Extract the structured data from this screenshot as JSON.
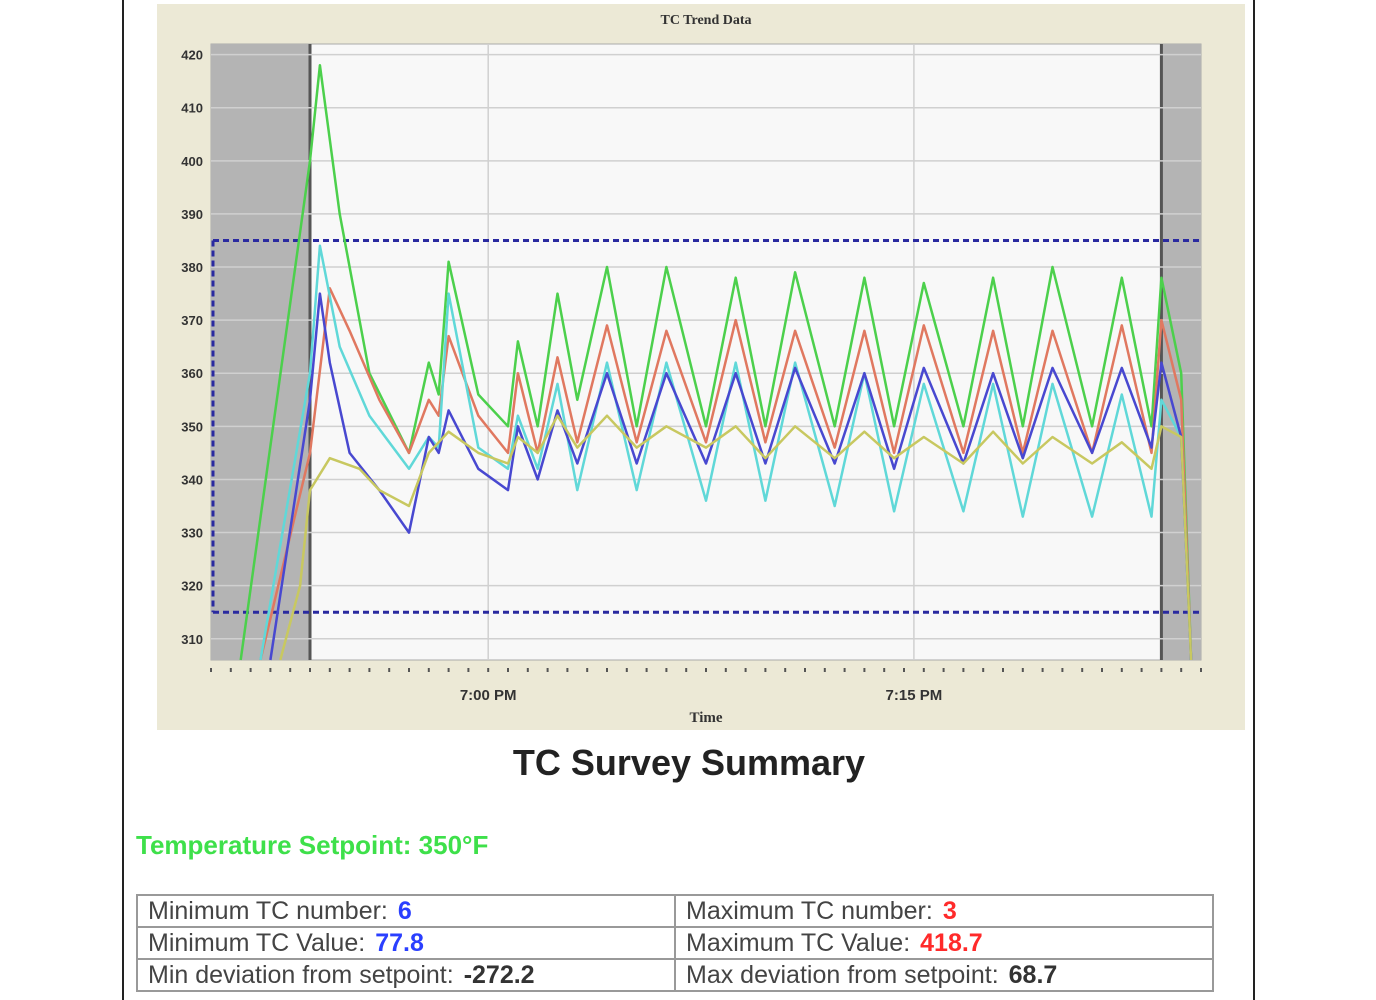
{
  "chart_data": {
    "type": "line",
    "title": "TC Trend Data",
    "xlabel": "Time",
    "ylabel": "",
    "ylim": [
      306,
      422
    ],
    "yticks": [
      310,
      320,
      330,
      340,
      350,
      360,
      370,
      380,
      390,
      400,
      410,
      420
    ],
    "ytick_labels": [
      "310",
      "320",
      "330",
      "340",
      "350",
      "360",
      "370",
      "380",
      "390",
      "400",
      "410",
      "420"
    ],
    "xlim": [
      0,
      100
    ],
    "xticks": [
      {
        "x": 28,
        "label": "7:00 PM"
      },
      {
        "x": 71,
        "label": "7:15 PM"
      }
    ],
    "grid": true,
    "shaded_regions": [
      [
        0,
        10
      ],
      [
        96,
        100
      ]
    ],
    "limit_lines": [
      385,
      315
    ],
    "series": [
      {
        "color": "#4cd04c",
        "points": [
          [
            3,
            306
          ],
          [
            10,
            400
          ],
          [
            11,
            418
          ],
          [
            13,
            390
          ],
          [
            16,
            360
          ],
          [
            20,
            345
          ],
          [
            22,
            362
          ],
          [
            23,
            356
          ],
          [
            24,
            381
          ],
          [
            27,
            356
          ],
          [
            30,
            350
          ],
          [
            31,
            366
          ],
          [
            33,
            350
          ],
          [
            35,
            375
          ],
          [
            37,
            355
          ],
          [
            40,
            380
          ],
          [
            43,
            350
          ],
          [
            46,
            380
          ],
          [
            50,
            350
          ],
          [
            53,
            378
          ],
          [
            56,
            350
          ],
          [
            59,
            379
          ],
          [
            63,
            350
          ],
          [
            66,
            378
          ],
          [
            69,
            350
          ],
          [
            72,
            377
          ],
          [
            76,
            350
          ],
          [
            79,
            378
          ],
          [
            82,
            350
          ],
          [
            85,
            380
          ],
          [
            89,
            350
          ],
          [
            92,
            378
          ],
          [
            95,
            350
          ],
          [
            96,
            378
          ],
          [
            98,
            360
          ],
          [
            99,
            306
          ]
        ]
      },
      {
        "color": "#e07860",
        "points": [
          [
            5,
            306
          ],
          [
            10,
            345
          ],
          [
            12,
            376
          ],
          [
            14,
            368
          ],
          [
            17,
            355
          ],
          [
            20,
            345
          ],
          [
            22,
            355
          ],
          [
            23,
            352
          ],
          [
            24,
            367
          ],
          [
            27,
            352
          ],
          [
            30,
            345
          ],
          [
            31,
            360
          ],
          [
            33,
            345
          ],
          [
            35,
            363
          ],
          [
            37,
            347
          ],
          [
            40,
            369
          ],
          [
            43,
            347
          ],
          [
            46,
            368
          ],
          [
            50,
            347
          ],
          [
            53,
            370
          ],
          [
            56,
            347
          ],
          [
            59,
            368
          ],
          [
            63,
            346
          ],
          [
            66,
            368
          ],
          [
            69,
            345
          ],
          [
            72,
            369
          ],
          [
            76,
            345
          ],
          [
            79,
            368
          ],
          [
            82,
            345
          ],
          [
            85,
            368
          ],
          [
            89,
            345
          ],
          [
            92,
            369
          ],
          [
            95,
            345
          ],
          [
            96,
            370
          ],
          [
            98,
            355
          ],
          [
            99,
            306
          ]
        ]
      },
      {
        "color": "#60d8d8",
        "points": [
          [
            5,
            306
          ],
          [
            10,
            360
          ],
          [
            11,
            384
          ],
          [
            13,
            365
          ],
          [
            16,
            352
          ],
          [
            20,
            342
          ],
          [
            22,
            348
          ],
          [
            23,
            346
          ],
          [
            24,
            375
          ],
          [
            27,
            346
          ],
          [
            30,
            342
          ],
          [
            31,
            352
          ],
          [
            33,
            342
          ],
          [
            35,
            358
          ],
          [
            37,
            338
          ],
          [
            40,
            362
          ],
          [
            43,
            338
          ],
          [
            46,
            362
          ],
          [
            50,
            336
          ],
          [
            53,
            362
          ],
          [
            56,
            336
          ],
          [
            59,
            362
          ],
          [
            63,
            335
          ],
          [
            66,
            360
          ],
          [
            69,
            334
          ],
          [
            72,
            358
          ],
          [
            76,
            334
          ],
          [
            79,
            358
          ],
          [
            82,
            333
          ],
          [
            85,
            358
          ],
          [
            89,
            333
          ],
          [
            92,
            356
          ],
          [
            95,
            333
          ],
          [
            96,
            355
          ],
          [
            98,
            348
          ],
          [
            99,
            306
          ]
        ]
      },
      {
        "color": "#4848d0",
        "points": [
          [
            6,
            306
          ],
          [
            10,
            355
          ],
          [
            11,
            375
          ],
          [
            12,
            362
          ],
          [
            14,
            345
          ],
          [
            17,
            338
          ],
          [
            20,
            330
          ],
          [
            22,
            348
          ],
          [
            23,
            345
          ],
          [
            24,
            353
          ],
          [
            27,
            342
          ],
          [
            30,
            338
          ],
          [
            31,
            350
          ],
          [
            33,
            340
          ],
          [
            35,
            353
          ],
          [
            37,
            343
          ],
          [
            40,
            360
          ],
          [
            43,
            343
          ],
          [
            46,
            360
          ],
          [
            50,
            343
          ],
          [
            53,
            360
          ],
          [
            56,
            343
          ],
          [
            59,
            361
          ],
          [
            63,
            343
          ],
          [
            66,
            360
          ],
          [
            69,
            342
          ],
          [
            72,
            361
          ],
          [
            76,
            343
          ],
          [
            79,
            360
          ],
          [
            82,
            344
          ],
          [
            85,
            361
          ],
          [
            89,
            345
          ],
          [
            92,
            361
          ],
          [
            95,
            346
          ],
          [
            96,
            362
          ],
          [
            98,
            348
          ],
          [
            99,
            306
          ]
        ]
      },
      {
        "color": "#c8c860",
        "points": [
          [
            7,
            306
          ],
          [
            9,
            320
          ],
          [
            10,
            338
          ],
          [
            12,
            344
          ],
          [
            15,
            342
          ],
          [
            17,
            338
          ],
          [
            20,
            335
          ],
          [
            22,
            345
          ],
          [
            23,
            347
          ],
          [
            24,
            349
          ],
          [
            27,
            345
          ],
          [
            30,
            343
          ],
          [
            31,
            348
          ],
          [
            33,
            345
          ],
          [
            35,
            352
          ],
          [
            37,
            346
          ],
          [
            40,
            352
          ],
          [
            43,
            346
          ],
          [
            46,
            350
          ],
          [
            50,
            346
          ],
          [
            53,
            350
          ],
          [
            56,
            344
          ],
          [
            59,
            350
          ],
          [
            63,
            344
          ],
          [
            66,
            349
          ],
          [
            69,
            344
          ],
          [
            72,
            348
          ],
          [
            76,
            343
          ],
          [
            79,
            349
          ],
          [
            82,
            343
          ],
          [
            85,
            348
          ],
          [
            89,
            343
          ],
          [
            92,
            347
          ],
          [
            95,
            342
          ],
          [
            96,
            350
          ],
          [
            98,
            348
          ],
          [
            99,
            306
          ]
        ]
      }
    ]
  },
  "summary": {
    "title": "TC Survey Summary",
    "setpoint": "Temperature Setpoint: 350°F",
    "min_tc_number_label": "Minimum TC number:",
    "min_tc_number": "6",
    "max_tc_number_label": "Maximum TC number:",
    "max_tc_number": "3",
    "min_tc_value_label": "Minimum TC Value:",
    "min_tc_value": "77.8",
    "max_tc_value_label": "Maximum TC Value:",
    "max_tc_value": "418.7",
    "min_dev_label": "Min deviation from setpoint:",
    "min_dev": "-272.2",
    "max_dev_label": "Max deviation from setpoint:",
    "max_dev": "68.7"
  }
}
